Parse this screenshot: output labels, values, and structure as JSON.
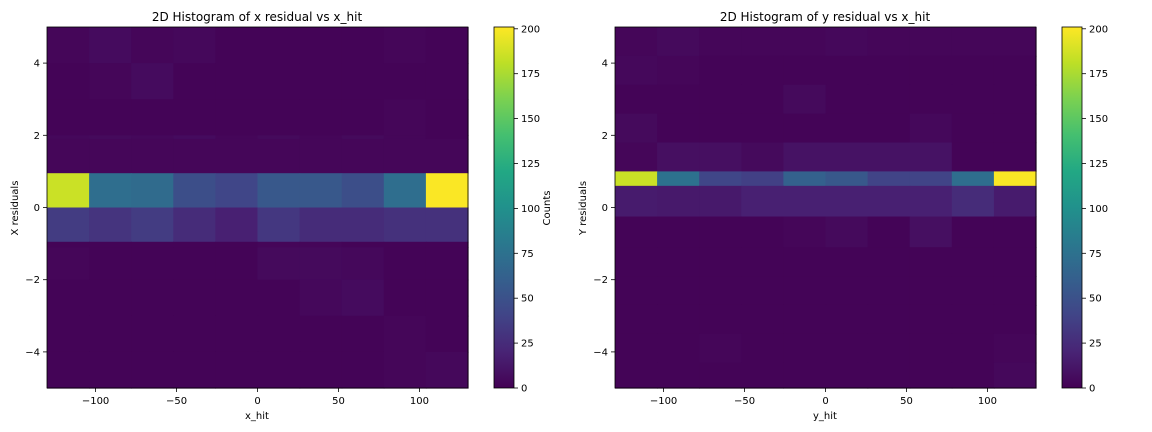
{
  "chart_data": [
    {
      "type": "heatmap",
      "title": "2D Histogram of x residual vs x_hit",
      "xlabel": "x_hit",
      "ylabel": "X residuals",
      "xlim": [
        -130,
        130
      ],
      "ylim": [
        -5,
        5
      ],
      "x_ticks": [
        -100,
        -50,
        0,
        50,
        100
      ],
      "x_tick_labels": [
        "−100",
        "−50",
        "0",
        "50",
        "100"
      ],
      "y_ticks": [
        4,
        2,
        0,
        -2,
        -4
      ],
      "y_tick_labels": [
        "4",
        "2",
        "0",
        "−2",
        "−4"
      ],
      "x_edges": [
        -130,
        -104,
        -78,
        -52,
        -26,
        0,
        26,
        52,
        78,
        104,
        130
      ],
      "y_edges": [
        5,
        4,
        3,
        2,
        1.9,
        0.95,
        0,
        -0.95,
        -1.1,
        -2,
        -3,
        -4,
        -5
      ],
      "values": [
        [
          3,
          6,
          3,
          4,
          2,
          2,
          2,
          2,
          3,
          2
        ],
        [
          2,
          3,
          6,
          2,
          2,
          2,
          2,
          2,
          2,
          2
        ],
        [
          2,
          2,
          2,
          2,
          2,
          2,
          2,
          2,
          3,
          2
        ],
        [
          4,
          5,
          4,
          6,
          3,
          5,
          3,
          5,
          3,
          2
        ],
        [
          3,
          3,
          3,
          3,
          3,
          3,
          3,
          3,
          3,
          3
        ],
        [
          185,
          72,
          70,
          48,
          42,
          55,
          55,
          48,
          72,
          200
        ],
        [
          35,
          30,
          35,
          25,
          18,
          32,
          25,
          25,
          28,
          28
        ],
        [
          2,
          2,
          2,
          2,
          2,
          3,
          3,
          2,
          2,
          2
        ],
        [
          3,
          2,
          2,
          2,
          2,
          5,
          5,
          4,
          2,
          2
        ],
        [
          2,
          2,
          2,
          2,
          2,
          2,
          4,
          6,
          2,
          2
        ],
        [
          2,
          2,
          2,
          2,
          2,
          2,
          2,
          2,
          3,
          2
        ],
        [
          2,
          2,
          2,
          2,
          2,
          2,
          2,
          2,
          3,
          4
        ]
      ]
    },
    {
      "type": "heatmap",
      "title": "2D Histogram of y residual vs x_hit",
      "xlabel": "y_hit",
      "ylabel": "Y residuals",
      "xlim": [
        -130,
        130
      ],
      "ylim": [
        -5,
        5
      ],
      "x_ticks": [
        -100,
        -50,
        0,
        50,
        100
      ],
      "x_tick_labels": [
        "−100",
        "−50",
        "0",
        "50",
        "100"
      ],
      "y_ticks": [
        4,
        2,
        0,
        -2,
        -4
      ],
      "y_tick_labels": [
        "4",
        "2",
        "0",
        "−2",
        "−4"
      ],
      "x_edges": [
        -130,
        -104,
        -78,
        -52,
        -26,
        0,
        26,
        52,
        78,
        104,
        130
      ],
      "y_edges": [
        5,
        4.2,
        3.4,
        2.6,
        1.8,
        1,
        0.6,
        -0.25,
        -1.1,
        -1.9,
        -2.7,
        -3.5,
        -4.3,
        -5
      ],
      "values": [
        [
          3,
          5,
          3,
          3,
          3,
          4,
          3,
          3,
          3,
          3
        ],
        [
          4,
          3,
          2,
          2,
          2,
          2,
          2,
          2,
          2,
          2
        ],
        [
          2,
          2,
          2,
          2,
          5,
          2,
          2,
          2,
          2,
          2
        ],
        [
          5,
          2,
          2,
          2,
          2,
          2,
          2,
          4,
          2,
          2
        ],
        [
          3,
          8,
          8,
          5,
          10,
          10,
          10,
          10,
          2,
          2
        ],
        [
          185,
          75,
          42,
          38,
          62,
          55,
          40,
          40,
          72,
          200
        ],
        [
          15,
          14,
          14,
          18,
          18,
          18,
          18,
          18,
          25,
          15
        ],
        [
          2,
          2,
          2,
          2,
          3,
          5,
          2,
          8,
          2,
          2
        ],
        [
          2,
          2,
          2,
          2,
          2,
          2,
          2,
          2,
          2,
          2
        ],
        [
          2,
          2,
          2,
          2,
          2,
          2,
          2,
          2,
          2,
          2
        ],
        [
          2,
          2,
          2,
          2,
          2,
          2,
          2,
          2,
          2,
          2
        ],
        [
          2,
          2,
          3,
          2,
          2,
          2,
          2,
          2,
          2,
          3
        ],
        [
          2,
          2,
          2,
          2,
          2,
          2,
          2,
          2,
          2,
          4
        ]
      ]
    }
  ],
  "colorbars": [
    {
      "label": "Counts",
      "min": 0,
      "max": 201,
      "ticks": [
        0,
        25,
        50,
        75,
        100,
        125,
        150,
        175,
        200
      ],
      "tick_labels": [
        "0",
        "25",
        "50",
        "75",
        "100",
        "125",
        "150",
        "175",
        "200"
      ]
    },
    {
      "label": "",
      "min": 0,
      "max": 201,
      "ticks": [
        0,
        25,
        50,
        75,
        100,
        125,
        150,
        175,
        200
      ],
      "tick_labels": [
        "0",
        "25",
        "50",
        "75",
        "100",
        "125",
        "150",
        "175",
        "200"
      ]
    }
  ],
  "colormap": "viridis"
}
